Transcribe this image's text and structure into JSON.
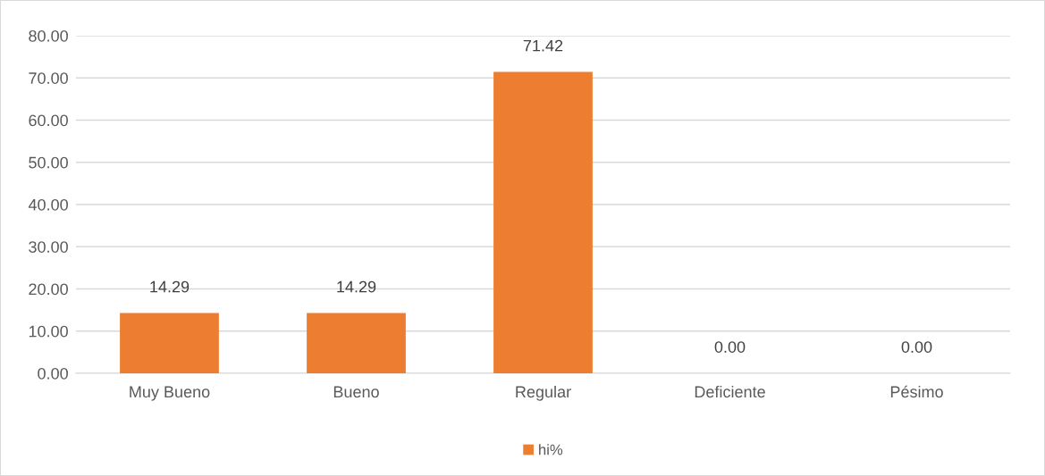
{
  "chart_data": {
    "type": "bar",
    "categories": [
      "Muy Bueno",
      "Bueno",
      "Regular",
      "Deficiente",
      "Pésimo"
    ],
    "series": [
      {
        "name": "hi%",
        "color": "#ed7d31",
        "values": [
          14.29,
          14.29,
          71.42,
          0,
          0
        ],
        "value_labels": [
          "14.29",
          "14.29",
          "71.42",
          "0.00",
          "0.00"
        ]
      }
    ],
    "ylim": [
      0,
      80
    ],
    "yticks": [
      {
        "value": 0,
        "label": "0.00"
      },
      {
        "value": 10,
        "label": "10.00"
      },
      {
        "value": 20,
        "label": "20.00"
      },
      {
        "value": 30,
        "label": "30.00"
      },
      {
        "value": 40,
        "label": "40.00"
      },
      {
        "value": 50,
        "label": "50.00"
      },
      {
        "value": 60,
        "label": "60.00"
      },
      {
        "value": 70,
        "label": "70.00"
      },
      {
        "value": 80,
        "label": "80.00"
      }
    ],
    "grid": "y",
    "legend": "bottom"
  }
}
